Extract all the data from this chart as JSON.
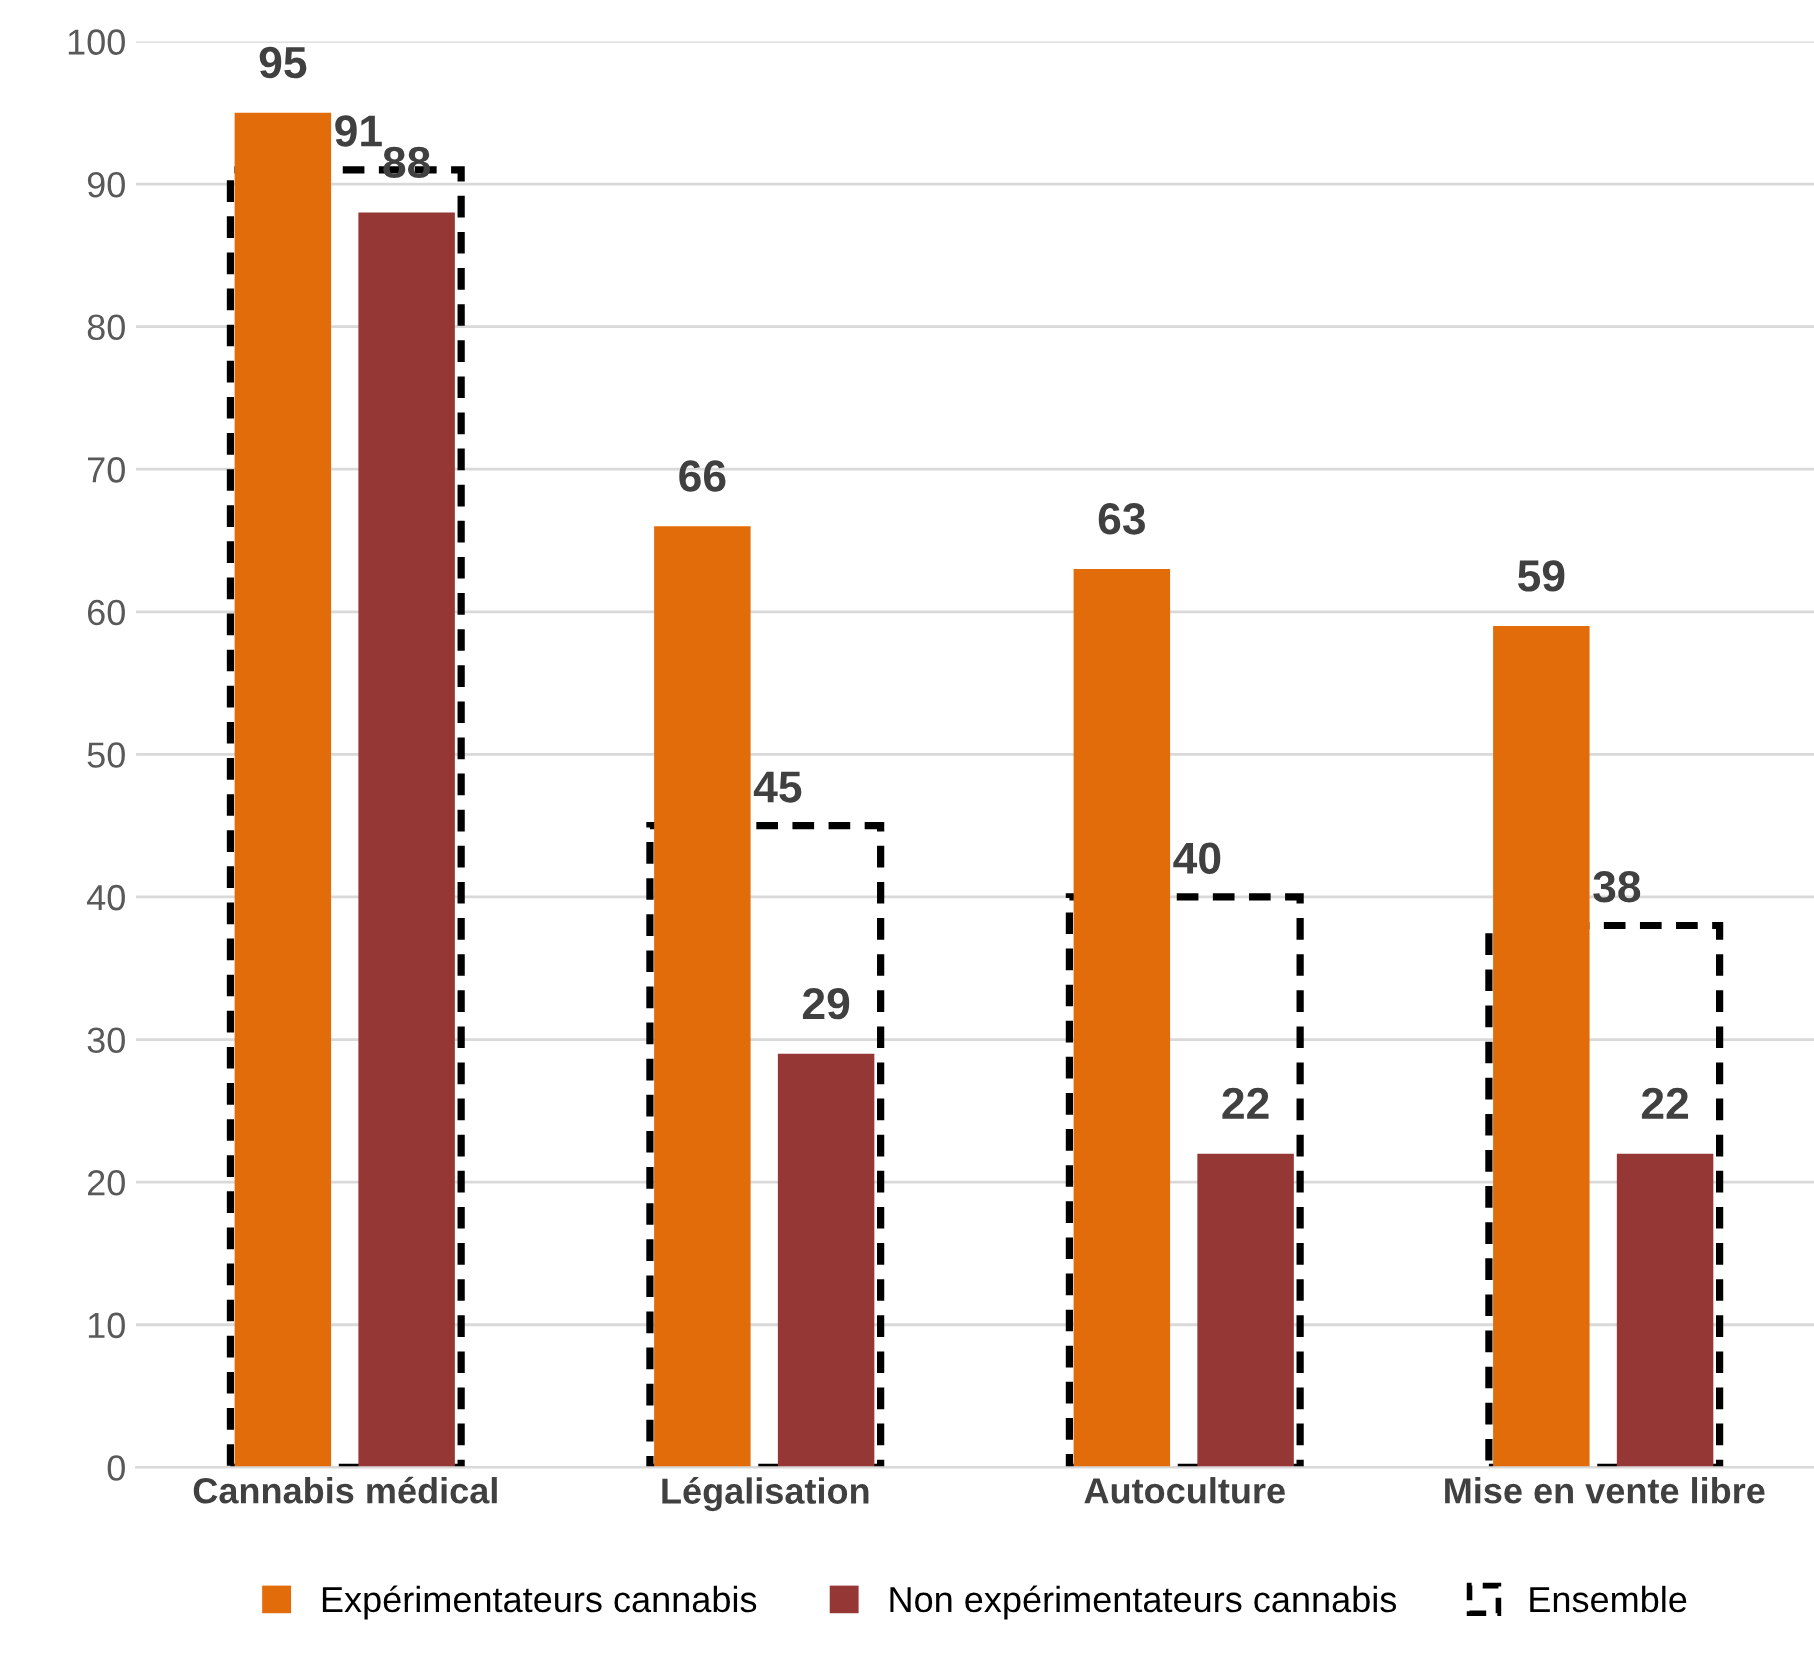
{
  "chart_data": {
    "type": "bar",
    "categories": [
      "Cannabis médical",
      "Légalisation",
      "Autoculture",
      "Mise en vente libre"
    ],
    "series": [
      {
        "name": "Expérimentateurs cannabis",
        "color": "#e36c0a",
        "values": [
          95,
          66,
          63,
          59
        ]
      },
      {
        "name": "Non expérimentateurs cannabis",
        "color": "#953735",
        "values": [
          88,
          29,
          22,
          22
        ]
      },
      {
        "name": "Ensemble",
        "color": "#000000",
        "values": [
          91,
          45,
          40,
          38
        ],
        "line_style": "dashed"
      }
    ],
    "ylim": [
      0,
      100
    ],
    "yticks": [
      0,
      10,
      20,
      30,
      40,
      50,
      60,
      70,
      80,
      90,
      100
    ],
    "grid": "y",
    "legend": "bottom",
    "data_labels": true
  }
}
